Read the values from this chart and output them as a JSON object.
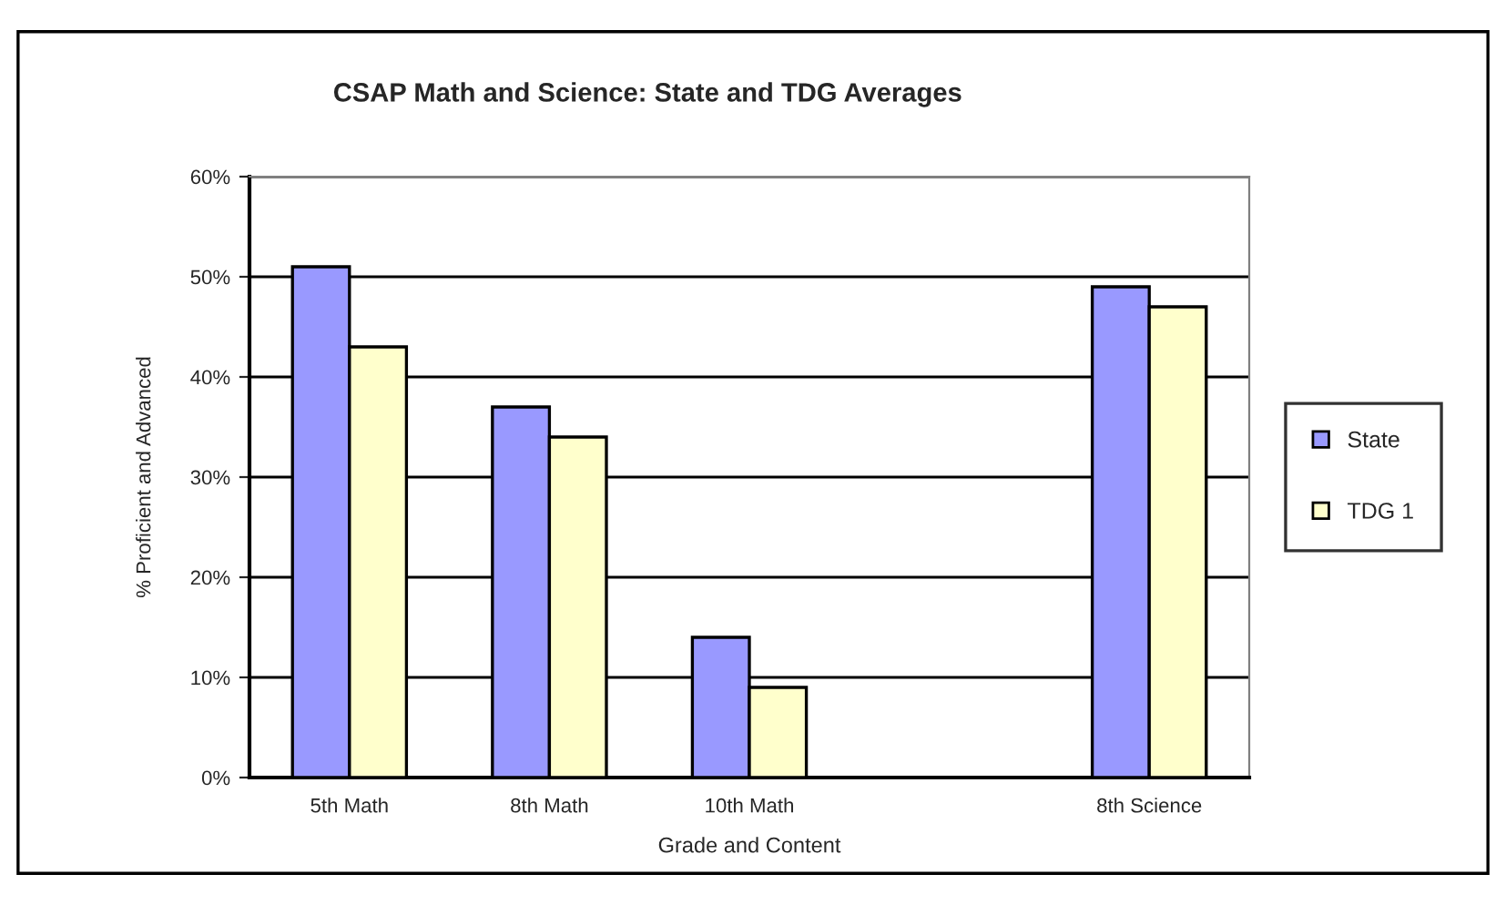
{
  "chart_data": {
    "type": "bar",
    "title": "CSAP Math and Science: State and TDG Averages",
    "xlabel": "Grade and Content",
    "ylabel": "% Proficient and Advanced",
    "categories": [
      "5th Math",
      "8th Math",
      "10th Math",
      null,
      "8th Science"
    ],
    "series": [
      {
        "name": "State",
        "color": "#9999ff",
        "values": [
          51,
          37,
          14,
          null,
          49
        ]
      },
      {
        "name": "TDG 1",
        "color": "#ffffcc",
        "values": [
          43,
          34,
          9,
          null,
          47
        ]
      }
    ],
    "ylim": [
      0,
      60
    ],
    "yticks": [
      {
        "value": 0,
        "label": "0%"
      },
      {
        "value": 10,
        "label": "10%"
      },
      {
        "value": 20,
        "label": "20%"
      },
      {
        "value": 30,
        "label": "30%"
      },
      {
        "value": 40,
        "label": "40%"
      },
      {
        "value": 50,
        "label": "50%"
      },
      {
        "value": 60,
        "label": "60%"
      }
    ],
    "grid": "y",
    "legend": "right"
  }
}
